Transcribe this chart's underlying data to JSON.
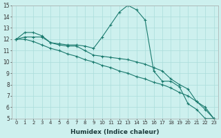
{
  "xlabel": "Humidex (Indice chaleur)",
  "xlim": [
    -0.5,
    23.5
  ],
  "ylim": [
    5,
    15
  ],
  "yticks": [
    5,
    6,
    7,
    8,
    9,
    10,
    11,
    12,
    13,
    14,
    15
  ],
  "xticks": [
    0,
    1,
    2,
    3,
    4,
    5,
    6,
    7,
    8,
    9,
    10,
    11,
    12,
    13,
    14,
    15,
    16,
    17,
    18,
    19,
    20,
    21,
    22,
    23
  ],
  "bg_color": "#cdf0ee",
  "line_color": "#1a7a6e",
  "grid_color": "#aaddda",
  "line1_x": [
    0,
    1,
    2,
    3,
    4,
    5,
    6,
    7,
    8,
    9,
    10,
    11,
    12,
    13,
    14,
    15,
    16,
    17,
    18,
    19,
    20,
    21,
    22,
    23
  ],
  "line1_y": [
    12.0,
    12.6,
    12.6,
    12.3,
    11.7,
    11.6,
    11.5,
    11.5,
    11.4,
    11.2,
    12.2,
    13.3,
    14.4,
    15.0,
    14.6,
    13.7,
    9.2,
    8.3,
    8.3,
    7.8,
    6.3,
    5.8,
    5.0,
    5.0
  ],
  "line2_x": [
    0,
    1,
    2,
    3,
    4,
    5,
    6,
    7,
    8,
    9,
    10,
    11,
    12,
    13,
    14,
    15,
    16,
    17,
    18,
    19,
    20,
    21,
    22,
    23
  ],
  "line2_y": [
    12.0,
    12.0,
    11.8,
    11.5,
    11.2,
    11.0,
    10.7,
    10.5,
    10.2,
    10.0,
    9.7,
    9.5,
    9.2,
    9.0,
    8.7,
    8.5,
    8.2,
    8.0,
    7.7,
    7.3,
    7.0,
    6.5,
    6.0,
    5.0
  ],
  "line3_x": [
    0,
    1,
    2,
    3,
    4,
    5,
    6,
    7,
    8,
    9,
    10,
    11,
    12,
    13,
    14,
    15,
    16,
    17,
    18,
    19,
    20,
    21,
    22,
    23
  ],
  "line3_y": [
    12.0,
    12.2,
    12.2,
    12.2,
    11.7,
    11.5,
    11.4,
    11.4,
    11.0,
    10.6,
    10.5,
    10.4,
    10.3,
    10.2,
    10.0,
    9.8,
    9.5,
    9.2,
    8.5,
    8.0,
    7.6,
    6.5,
    5.8,
    5.0
  ]
}
